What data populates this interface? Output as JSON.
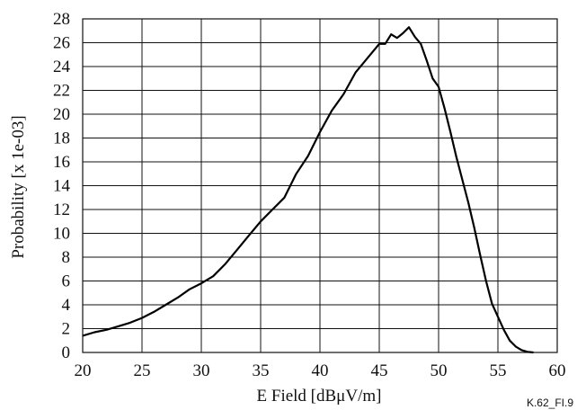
{
  "chart_data": {
    "type": "line",
    "title": "",
    "xlabel": "E Field [dBμV/m]",
    "ylabel": "Probability [x 1e-03]",
    "xlim": [
      20,
      60
    ],
    "ylim": [
      0,
      28
    ],
    "xticks": [
      20,
      25,
      30,
      35,
      40,
      45,
      50,
      55,
      60
    ],
    "yticks": [
      0,
      2,
      4,
      6,
      8,
      10,
      12,
      14,
      16,
      18,
      20,
      22,
      24,
      26,
      28
    ],
    "grid": true,
    "legend": "none",
    "line_color": "#000000",
    "series": [
      {
        "x": [
          20,
          21,
          22,
          23,
          24,
          25,
          26,
          27,
          28,
          29,
          30,
          31,
          32,
          33,
          34,
          35,
          36,
          37,
          38,
          39,
          40,
          41,
          42,
          43,
          44,
          45,
          45.5,
          46,
          46.5,
          47,
          47.5,
          48,
          48.5,
          49,
          49.5,
          50,
          50.5,
          51,
          51.5,
          52,
          52.5,
          53,
          53.5,
          54,
          54.5,
          55,
          55.5,
          56,
          56.5,
          57,
          57.5,
          58
        ],
        "values": [
          1.4,
          1.7,
          1.9,
          2.2,
          2.5,
          2.9,
          3.4,
          4.0,
          4.6,
          5.3,
          5.8,
          6.4,
          7.4,
          8.6,
          9.8,
          11.0,
          12.0,
          13.0,
          15.0,
          16.5,
          18.5,
          20.3,
          21.7,
          23.5,
          24.7,
          25.9,
          25.9,
          26.7,
          26.4,
          26.8,
          27.3,
          26.5,
          25.9,
          24.5,
          23.0,
          22.3,
          20.5,
          18.5,
          16.4,
          14.5,
          12.6,
          10.5,
          8.2,
          6.0,
          4.1,
          3.0,
          1.9,
          1.0,
          0.5,
          0.2,
          0.05,
          0.0
        ]
      }
    ],
    "figure_id": "K.62_FI.9"
  }
}
